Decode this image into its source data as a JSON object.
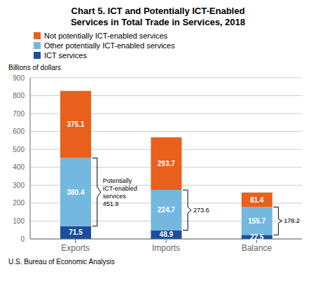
{
  "chart_data": {
    "type": "bar",
    "title": "Chart 5. ICT and Potentially ICT-Enabled\nServices in Total Trade in Services, 2018",
    "y_label": "Billions of dollars",
    "footnote": "U.S. Bureau of Economic Analysis",
    "categories": [
      "Exports",
      "Imports",
      "Balance"
    ],
    "series": [
      {
        "name": "ICT services",
        "color": "#1B4F9B",
        "values": [
          71.5,
          48.9,
          22.5
        ]
      },
      {
        "name": "Other potentially ICT-enabled services",
        "color": "#74B8E0",
        "values": [
          380.4,
          224.7,
          155.7
        ]
      },
      {
        "name": "Not potentially ICT-enabled services",
        "color": "#E8601C",
        "values": [
          375.1,
          293.7,
          81.4
        ]
      }
    ],
    "stacked": true,
    "data_labels": true,
    "ylim": [
      0,
      900
    ],
    "yticks": [
      0,
      100,
      200,
      300,
      400,
      500,
      600,
      700,
      800,
      900
    ],
    "grid": true,
    "legend": "top",
    "annotations": [
      {
        "text": "Potentially\nICT-enabled\nservices\n451.9",
        "category": "Exports",
        "y_from": 71.5,
        "y_to": 451.9
      },
      {
        "text": "273.6",
        "category": "Imports",
        "y_from": 48.9,
        "y_to": 273.6
      },
      {
        "text": "178.2",
        "category": "Balance",
        "y_from": 22.5,
        "y_to": 178.2
      }
    ]
  }
}
